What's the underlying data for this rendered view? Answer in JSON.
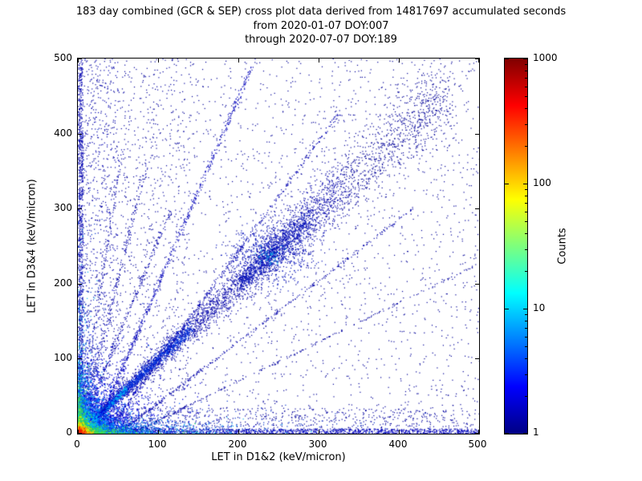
{
  "title": {
    "line1": "183 day combined (GCR & SEP) cross plot data derived from 14817697 accumulated seconds",
    "line2": "from 2020-01-07 DOY:007",
    "line3": "through 2020-07-07 DOY:189"
  },
  "chart_data": {
    "type": "heatmap",
    "subtype": "2d-histogram cross plot, log-scaled counts, jet colormap",
    "title": "183 day combined (GCR & SEP) cross plot data derived from 14817697 accumulated seconds from 2020-01-07 DOY:007 through 2020-07-07 DOY:189",
    "xlabel": "LET in D1&2 (keV/micron)",
    "ylabel": "LET in D3&4 (keV/micron)",
    "xlim": [
      0,
      500
    ],
    "ylim": [
      0,
      500
    ],
    "x_ticks": [
      0,
      100,
      200,
      300,
      400,
      500
    ],
    "y_ticks": [
      0,
      100,
      200,
      300,
      400,
      500
    ],
    "grid": false,
    "colorbar": {
      "label": "Counts",
      "scale": "log",
      "ticks": [
        1,
        10,
        100,
        1000
      ],
      "range": [
        1,
        1000
      ],
      "colormap": "jet"
    },
    "accumulated_seconds": 14817697,
    "density_features": [
      {
        "type": "uniform",
        "n": 2300,
        "x0": 0,
        "x1": 500,
        "y0": 0,
        "y1": 500,
        "color": "#000099",
        "s": 1.2,
        "note": "sparse background counts (~1) over full plane"
      },
      {
        "type": "uniform",
        "n": 800,
        "x0": 0,
        "x1": 140,
        "y0": 0,
        "y1": 500,
        "color": "#0000a0",
        "s": 1.2,
        "note": "denser speckle at low LET D1&2"
      },
      {
        "type": "uniform",
        "n": 500,
        "x0": 0,
        "x1": 50,
        "y0": 0,
        "y1": 500,
        "color": "#0000b0",
        "s": 1.2
      },
      {
        "type": "uniform",
        "n": 700,
        "x0": 0,
        "x1": 500,
        "y0": 0,
        "y1": 35,
        "color": "#0000a0",
        "s": 1.2,
        "note": "band along x-axis"
      },
      {
        "type": "uniform",
        "n": 1200,
        "x0": 0,
        "x1": 500,
        "y0": 0,
        "y1": 7,
        "color": "#0000bb",
        "s": 1.2,
        "note": "near-continuous bottom edge line"
      },
      {
        "type": "uniform",
        "n": 900,
        "x0": 0,
        "x1": 6,
        "y0": 0,
        "y1": 500,
        "color": "#0000b0",
        "s": 1.2,
        "note": "near-continuous left edge line"
      },
      {
        "type": "diag",
        "n": 3200,
        "t0": 0,
        "t1": 330,
        "w0": 2,
        "w1": 20,
        "color": "#0000aa",
        "s": 1.2,
        "note": "main y=x coincidence band"
      },
      {
        "type": "diag",
        "n": 800,
        "t0": 330,
        "t1": 460,
        "w0": 20,
        "w1": 28,
        "color": "#000099",
        "s": 1.2,
        "note": "faint diagonal continuation"
      },
      {
        "type": "diag",
        "n": 600,
        "t0": 200,
        "t1": 290,
        "w0": 6,
        "w1": 10,
        "color": "#0011bb",
        "s": 1.2
      },
      {
        "type": "diag",
        "n": 1100,
        "t0": 0,
        "t1": 140,
        "w0": 1.5,
        "w1": 5,
        "color": "#0033dd",
        "s": 1.2
      },
      {
        "type": "diag",
        "n": 450,
        "t0": 0,
        "t1": 60,
        "w0": 1,
        "w1": 2.5,
        "color": "#00aaee",
        "s": 1.3
      },
      {
        "type": "blob",
        "n": 650,
        "cx": 240,
        "cy": 238,
        "sx": 26,
        "sy": 20,
        "color": "#0011bb",
        "s": 1.2,
        "note": "dense knot on diagonal near (240,240)"
      },
      {
        "type": "blob",
        "n": 50,
        "cx": 238,
        "cy": 238,
        "sx": 8,
        "sy": 6,
        "color": "#0099dd",
        "s": 1.3
      },
      {
        "type": "streak",
        "n": 650,
        "x0": 20,
        "tilt": 0.0002,
        "ymax": 490,
        "color": "#0000bb",
        "s": 1.2,
        "note": "vertical ion streak"
      },
      {
        "type": "streak",
        "n": 480,
        "x0": 34,
        "tilt": 0.0002,
        "ymax": 430,
        "color": "#0000b0",
        "s": 1.2
      },
      {
        "type": "streak",
        "n": 360,
        "x0": 49,
        "tilt": 0.00025,
        "ymax": 300,
        "color": "#0000aa",
        "s": 1.2
      },
      {
        "type": "streak",
        "n": 240,
        "x0": 64,
        "tilt": 0.0003,
        "ymax": 225,
        "color": "#0000a0",
        "s": 1.2
      },
      {
        "type": "ray",
        "n": 280,
        "slope": 2.6,
        "tmax": 115,
        "color": "#0000aa",
        "s": 1.2,
        "note": "fan line from origin"
      },
      {
        "type": "ray",
        "n": 230,
        "slope": 4.2,
        "tmax": 85,
        "color": "#0000aa",
        "s": 1.2
      },
      {
        "type": "ray",
        "n": 180,
        "slope": 7,
        "tmax": 55,
        "color": "#0000a8",
        "s": 1.2
      },
      {
        "type": "core",
        "n": 2600,
        "lx": 26,
        "ly": 26,
        "color": "#0000dd",
        "s": 1.3,
        "note": "hot core halo"
      },
      {
        "type": "core",
        "n": 900,
        "lx": 85,
        "ly": 9,
        "color": "#0033cc",
        "s": 1.2,
        "note": "tongue along x-axis"
      },
      {
        "type": "core",
        "n": 650,
        "lx": 9,
        "ly": 75,
        "color": "#0033cc",
        "s": 1.2,
        "note": "tongue along y-axis"
      },
      {
        "type": "core",
        "n": 650,
        "lx": 50,
        "ly": 5.5,
        "color": "#00aaee",
        "s": 1.2
      },
      {
        "type": "core",
        "n": 480,
        "lx": 5.5,
        "ly": 40,
        "color": "#00aaee",
        "s": 1.2
      },
      {
        "type": "core",
        "n": 1700,
        "lx": 15,
        "ly": 15,
        "color": "#0066ff",
        "s": 1.3
      },
      {
        "type": "core",
        "n": 1300,
        "lx": 9.5,
        "ly": 9.5,
        "color": "#00ccee",
        "s": 1.3
      },
      {
        "type": "core",
        "n": 350,
        "lx": 26,
        "ly": 3.2,
        "color": "#44dd44",
        "s": 1.2
      },
      {
        "type": "core",
        "n": 280,
        "lx": 3.2,
        "ly": 20,
        "color": "#44dd44",
        "s": 1.2
      },
      {
        "type": "core",
        "n": 900,
        "lx": 6.2,
        "ly": 6.2,
        "color": "#33cc55",
        "s": 1.3
      },
      {
        "type": "core",
        "n": 600,
        "lx": 4.2,
        "ly": 4.2,
        "color": "#ddee00",
        "s": 1.4
      },
      {
        "type": "core",
        "n": 380,
        "lx": 2.8,
        "ly": 2.8,
        "color": "#ff9900",
        "s": 1.4
      },
      {
        "type": "core",
        "n": 240,
        "lx": 1.8,
        "ly": 1.8,
        "color": "#ee2200",
        "s": 1.5
      }
    ]
  }
}
